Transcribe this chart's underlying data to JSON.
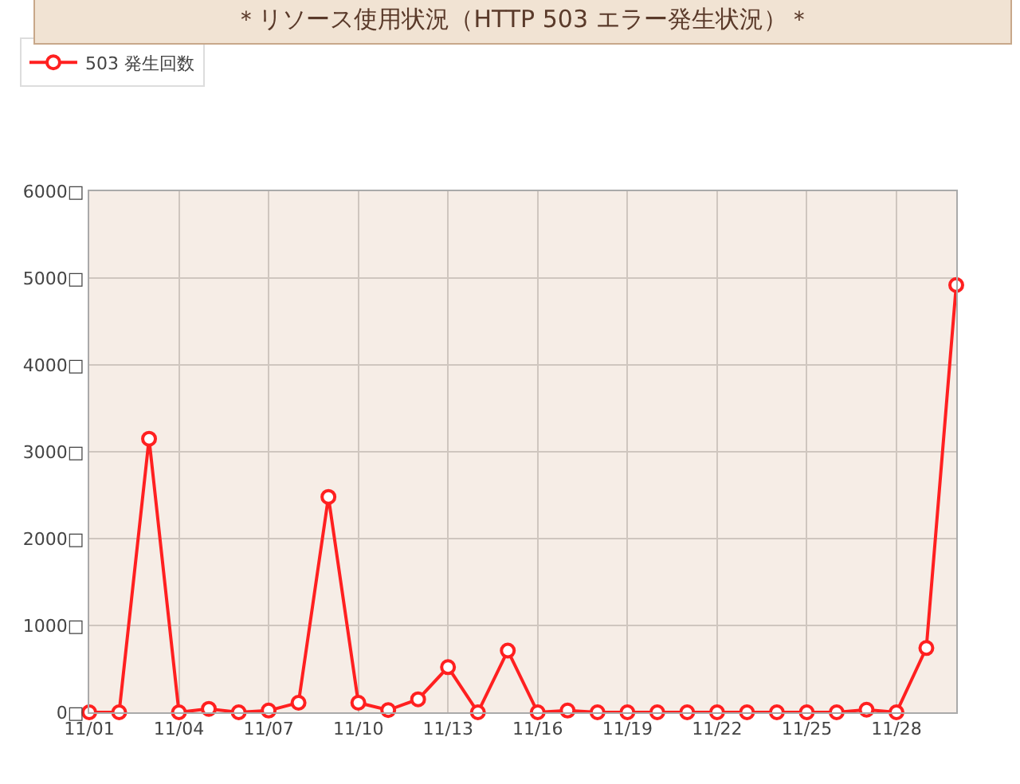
{
  "chart_data": {
    "type": "line",
    "title": "＊リソース使用状況（HTTP 503 エラー発生状況）＊",
    "categories": [
      "11/01",
      null,
      null,
      "11/04",
      null,
      null,
      "11/07",
      null,
      null,
      "11/10",
      null,
      null,
      "11/13",
      null,
      null,
      "11/16",
      null,
      null,
      "11/19",
      null,
      null,
      "11/22",
      null,
      null,
      "11/25",
      null,
      null,
      "11/28",
      null,
      null
    ],
    "series": [
      {
        "name": "503 発生回数",
        "color": "#ff2020",
        "values": [
          0,
          0,
          3150,
          0,
          40,
          0,
          20,
          110,
          2480,
          110,
          25,
          150,
          520,
          0,
          710,
          0,
          20,
          0,
          0,
          0,
          0,
          0,
          0,
          0,
          0,
          0,
          30,
          0,
          740,
          4920
        ]
      }
    ],
    "ylim": [
      0,
      6000
    ],
    "yticks": [
      {
        "value": 0,
        "label": "0□"
      },
      {
        "value": 1000,
        "label": "1000□"
      },
      {
        "value": 2000,
        "label": "2000□"
      },
      {
        "value": 3000,
        "label": "3000□"
      },
      {
        "value": 4000,
        "label": "4000□"
      },
      {
        "value": 5000,
        "label": "5000□"
      },
      {
        "value": 6000,
        "label": "6000□"
      }
    ],
    "grid": true,
    "legend": "top left",
    "marker": "circle",
    "line_style": "solid"
  }
}
